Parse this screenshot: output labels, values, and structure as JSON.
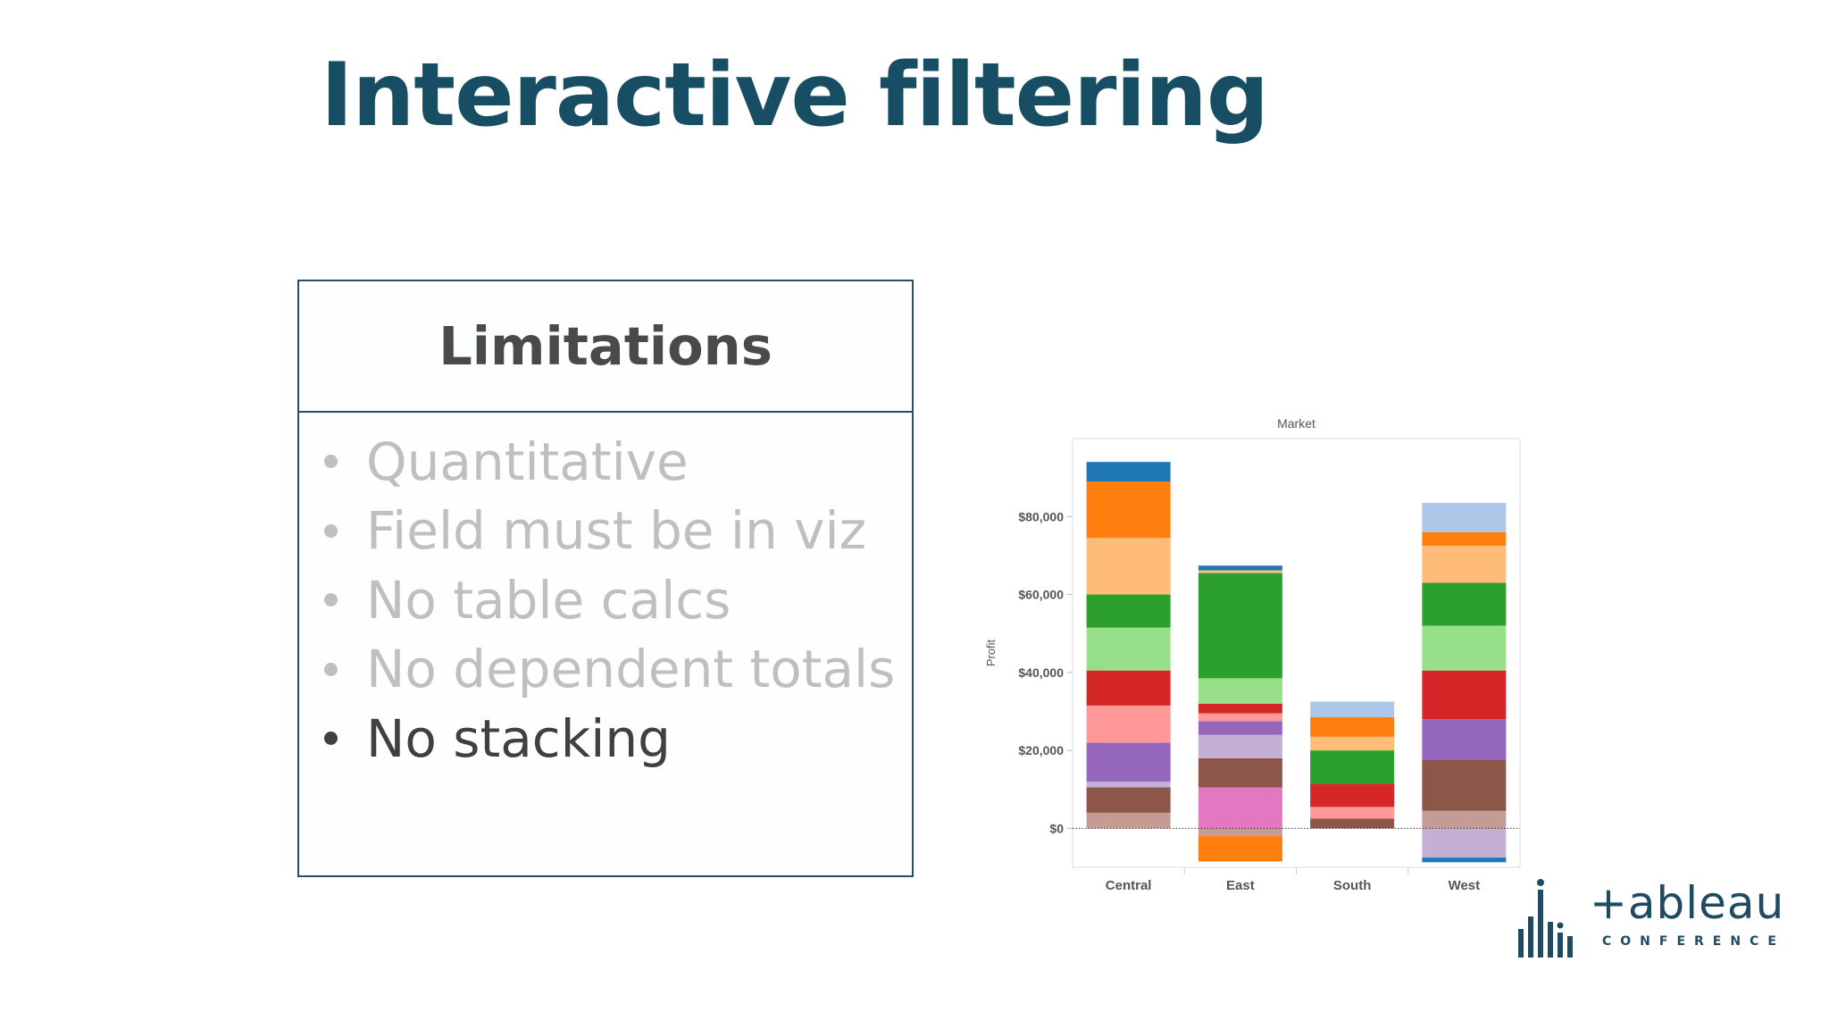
{
  "slide": {
    "title": "Interactive filtering"
  },
  "limitations": {
    "heading": "Limitations",
    "items": [
      {
        "label": "Quantitative",
        "active": false
      },
      {
        "label": "Field must be in viz",
        "active": false
      },
      {
        "label": "No table calcs",
        "active": false
      },
      {
        "label": "No dependent totals",
        "active": false
      },
      {
        "label": "No stacking",
        "active": true
      }
    ]
  },
  "chart_data": {
    "type": "bar",
    "stacked": true,
    "title": "Market",
    "xlabel": "",
    "ylabel": "Profit",
    "categories": [
      "Central",
      "East",
      "South",
      "West"
    ],
    "ylim": [
      -10000,
      100000
    ],
    "yticks": [
      {
        "value": 0,
        "label": "$0"
      },
      {
        "value": 20000,
        "label": "$20,000"
      },
      {
        "value": 40000,
        "label": "$40,000"
      },
      {
        "value": 60000,
        "label": "$60,000"
      },
      {
        "value": 80000,
        "label": "$80,000"
      }
    ],
    "zero_line": "dotted",
    "stacks": [
      [
        {
          "value": 4000,
          "color": "#c49c94"
        },
        {
          "value": 6500,
          "color": "#8c564b"
        },
        {
          "value": 1500,
          "color": "#c5b0d5"
        },
        {
          "value": 10000,
          "color": "#9467bd"
        },
        {
          "value": 9500,
          "color": "#ff9896"
        },
        {
          "value": 9000,
          "color": "#d62728"
        },
        {
          "value": 11000,
          "color": "#98df8a"
        },
        {
          "value": 8500,
          "color": "#2ca02c"
        },
        {
          "value": 14500,
          "color": "#ffbb78"
        },
        {
          "value": 14500,
          "color": "#ff7f0e"
        },
        {
          "value": 5000,
          "color": "#1f77b4"
        }
      ],
      [
        {
          "value": -2000,
          "color": "#c49c94"
        },
        {
          "value": -6500,
          "color": "#ff7f0e"
        },
        {
          "value": 10500,
          "color": "#e377c2"
        },
        {
          "value": 7500,
          "color": "#8c564b"
        },
        {
          "value": 6000,
          "color": "#c5b0d5"
        },
        {
          "value": 3500,
          "color": "#9467bd"
        },
        {
          "value": 2000,
          "color": "#ff9896"
        },
        {
          "value": 2500,
          "color": "#d62728"
        },
        {
          "value": 6500,
          "color": "#98df8a"
        },
        {
          "value": 27000,
          "color": "#2ca02c"
        },
        {
          "value": 700,
          "color": "#ffbb78"
        },
        {
          "value": 1200,
          "color": "#1f77b4"
        }
      ],
      [
        {
          "value": 2500,
          "color": "#8c564b"
        },
        {
          "value": 3000,
          "color": "#ff9896"
        },
        {
          "value": 6000,
          "color": "#d62728"
        },
        {
          "value": 8500,
          "color": "#2ca02c"
        },
        {
          "value": 3500,
          "color": "#ffbb78"
        },
        {
          "value": 5000,
          "color": "#ff7f0e"
        },
        {
          "value": 4000,
          "color": "#aec7e8"
        }
      ],
      [
        {
          "value": -7500,
          "color": "#c5b0d5"
        },
        {
          "value": -1200,
          "color": "#1f77b4"
        },
        {
          "value": 4500,
          "color": "#c49c94"
        },
        {
          "value": 13000,
          "color": "#8c564b"
        },
        {
          "value": 10500,
          "color": "#9467bd"
        },
        {
          "value": 12500,
          "color": "#d62728"
        },
        {
          "value": 11500,
          "color": "#98df8a"
        },
        {
          "value": 11000,
          "color": "#2ca02c"
        },
        {
          "value": 9500,
          "color": "#ffbb78"
        },
        {
          "value": 3500,
          "color": "#ff7f0e"
        },
        {
          "value": 7500,
          "color": "#aec7e8"
        }
      ]
    ]
  },
  "logo": {
    "wordmark": "+ableau",
    "subtitle": "CONFERENCE",
    "color": "#1f4b62"
  },
  "colors": {
    "title": "#184e64",
    "box_border": "#2c4b66",
    "inactive_text": "#bfbfbf",
    "active_text": "#404040"
  }
}
